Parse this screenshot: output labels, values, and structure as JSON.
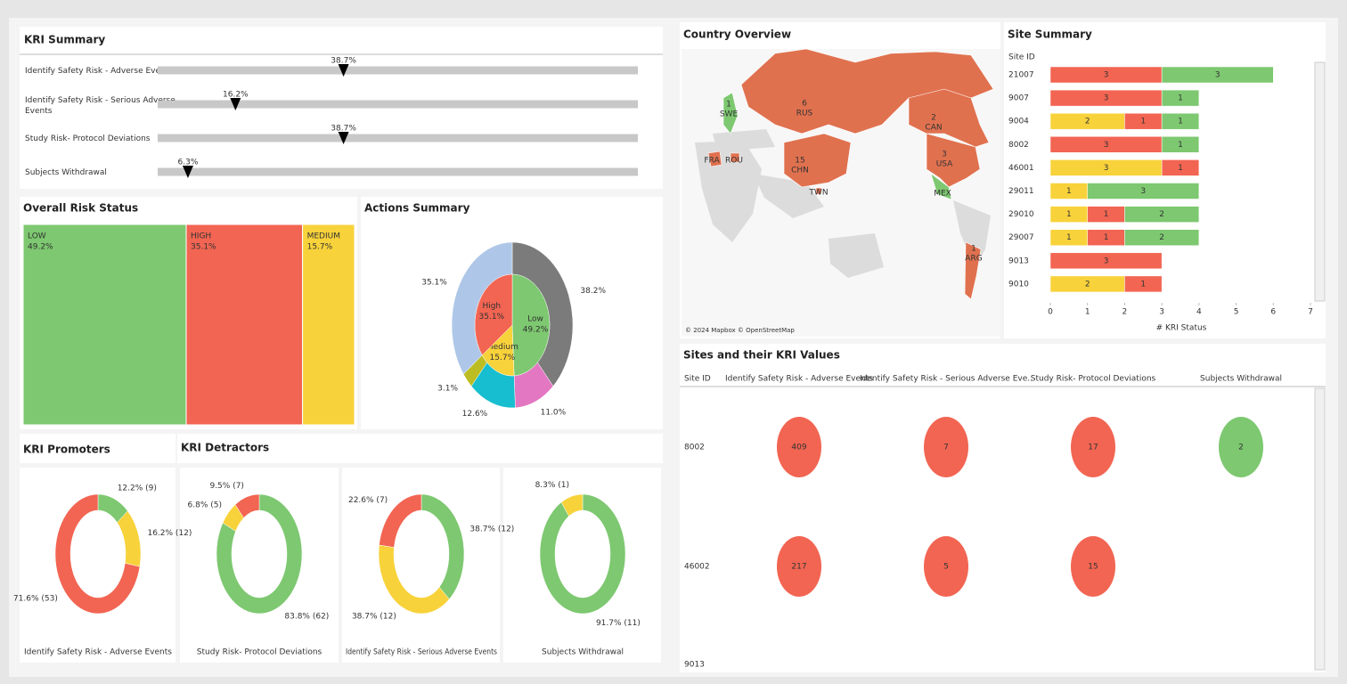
{
  "chart_data": [
    {
      "type": "bullet",
      "title": "KRI Summary",
      "categories": [
        "Identify Safety Risk - Adverse Events",
        "Identify Safety Risk - Serious Adverse Events",
        "Study Risk- Protocol Deviations",
        "Subjects Withdrawal"
      ],
      "values": [
        38.7,
        16.2,
        38.7,
        6.3
      ],
      "value_labels": [
        "38.7%",
        "16.2%",
        "38.7%",
        "6.3%"
      ],
      "xlim": [
        0,
        100
      ],
      "color": "#c8c8c8",
      "marker_color": "#000000"
    },
    {
      "type": "treemap",
      "title": "Overall Risk Status",
      "categories": [
        "LOW",
        "HIGH",
        "MEDIUM"
      ],
      "values": [
        49.2,
        35.1,
        15.7
      ],
      "value_labels": [
        "49.2%",
        "35.1%",
        "15.7%"
      ],
      "colors": [
        "#7dc870",
        "#f26552",
        "#f8d23a"
      ]
    },
    {
      "type": "sunburst",
      "title": "Actions Summary",
      "inner": {
        "categories": [
          "Low",
          "Medium",
          "High"
        ],
        "values": [
          49.2,
          15.7,
          35.1
        ],
        "value_labels": [
          "49.2%",
          "15.7%",
          "35.1%"
        ],
        "colors": [
          "#7dc870",
          "#f8d23a",
          "#f26552"
        ]
      },
      "outer": {
        "values": [
          38.2,
          11.0,
          12.6,
          3.1,
          35.1
        ],
        "value_labels": [
          "38.2%",
          "11.0%",
          "12.6%",
          "3.1%",
          "35.1%"
        ],
        "colors": [
          "#7b7b7b",
          "#e377c2",
          "#17becf",
          "#bcbd22",
          "#aec7e8"
        ]
      }
    },
    {
      "type": "donut",
      "title": "KRI Promoters",
      "xlabel": "Identify Safety Risk - Adverse Events",
      "values": [
        12.2,
        16.2,
        71.6
      ],
      "value_labels": [
        "12.2% (9)",
        "16.2% (12)",
        "71.6% (53)"
      ],
      "colors": [
        "#7dc870",
        "#f8d23a",
        "#f26552"
      ]
    },
    {
      "type": "donut",
      "title": "KRI Detractors",
      "xlabel": "Study Risk- Protocol Deviations",
      "values": [
        83.8,
        6.8,
        9.5
      ],
      "value_labels": [
        "83.8% (62)",
        "6.8% (5)",
        "9.5% (7)"
      ],
      "colors": [
        "#7dc870",
        "#f8d23a",
        "#f26552"
      ]
    },
    {
      "type": "donut",
      "xlabel": "Identify Safety Risk - Serious Adverse Events",
      "values": [
        38.7,
        38.7,
        22.6
      ],
      "value_labels": [
        "38.7% (12)",
        "38.7% (12)",
        "22.6% (7)"
      ],
      "colors": [
        "#7dc870",
        "#f8d23a",
        "#f26552"
      ]
    },
    {
      "type": "donut",
      "xlabel": "Subjects Withdrawal",
      "values": [
        91.7,
        8.3
      ],
      "value_labels": [
        "91.7% (11)",
        "8.3% (1)"
      ],
      "colors": [
        "#7dc870",
        "#f8d23a"
      ]
    },
    {
      "type": "map",
      "title": "Country Overview",
      "categories": [
        "SWE",
        "RUS",
        "CAN",
        "USA",
        "CHN",
        "FRA",
        "ROU",
        "TWN",
        "MEX",
        "ARG"
      ],
      "values": [
        1,
        6,
        2,
        3,
        15,
        null,
        null,
        null,
        null,
        1
      ],
      "colors": [
        "#7dc870",
        "#e0714f",
        "#e0714f",
        "#e0714f",
        "#e0714f",
        "#e0714f",
        "#e0714f",
        "#e0714f",
        "#7dc870",
        "#e0714f"
      ],
      "attribution": "© 2024 Mapbox © OpenStreetMap"
    },
    {
      "type": "hbar",
      "title": "Site Summary",
      "ylabel": "Site ID",
      "xlabel": "# KRI Status",
      "categories": [
        "21007",
        "9007",
        "9004",
        "8002",
        "46001",
        "29011",
        "29010",
        "29007",
        "9013",
        "9010"
      ],
      "series": [
        {
          "color": "#f8d23a",
          "values": [
            null,
            null,
            2,
            null,
            3,
            1,
            1,
            1,
            null,
            2
          ]
        },
        {
          "color": "#f26552",
          "values": [
            3,
            3,
            1,
            3,
            1,
            null,
            1,
            1,
            3,
            1
          ]
        },
        {
          "color": "#7dc870",
          "values": [
            3,
            1,
            1,
            1,
            null,
            3,
            2,
            2,
            null,
            null
          ]
        }
      ],
      "xlim": [
        0,
        7
      ],
      "xticks": [
        0,
        1,
        2,
        3,
        4,
        5,
        6,
        7
      ]
    },
    {
      "type": "circle-table",
      "title": "Sites and their KRI Values",
      "ylabel": "Site ID",
      "categories": [
        "8002",
        "46002",
        "9013"
      ],
      "series": [
        {
          "name": "Identify Safety Risk - Adverse Events",
          "color": "#f26552",
          "values": [
            409,
            217,
            null
          ]
        },
        {
          "name": "Identify Safety Risk - Serious Adverse Eve..",
          "color": "#f26552",
          "values": [
            7,
            5,
            null
          ]
        },
        {
          "name": "Study Risk- Protocol Deviations",
          "color": "#f26552",
          "values": [
            17,
            15,
            null
          ]
        },
        {
          "name": "Subjects Withdrawal",
          "color": "#7dc870",
          "values": [
            2,
            null,
            null
          ]
        }
      ]
    }
  ]
}
